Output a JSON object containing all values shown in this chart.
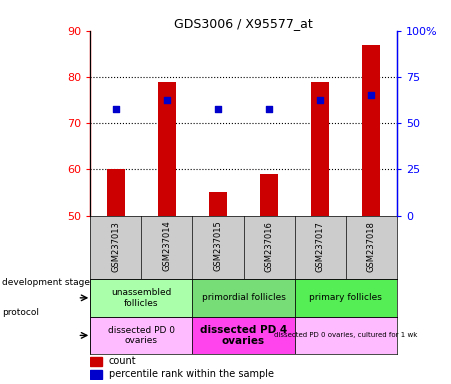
{
  "title": "GDS3006 / X95577_at",
  "samples": [
    "GSM237013",
    "GSM237014",
    "GSM237015",
    "GSM237016",
    "GSM237017",
    "GSM237018"
  ],
  "counts": [
    60,
    79,
    55,
    59,
    79,
    87
  ],
  "percentile_ranks": [
    73,
    75,
    73,
    73,
    75,
    76
  ],
  "ymin": 50,
  "ymax": 90,
  "yticks": [
    50,
    60,
    70,
    80,
    90
  ],
  "y2ticks": [
    0,
    25,
    50,
    75,
    100
  ],
  "y2labels": [
    "0",
    "25",
    "50",
    "75",
    "100%"
  ],
  "bar_color": "#cc0000",
  "dot_color": "#0000cc",
  "development_stages": [
    {
      "label": "unassembled\nfollicles",
      "start": 0,
      "end": 2,
      "color": "#aaffaa"
    },
    {
      "label": "primordial follicles",
      "start": 2,
      "end": 4,
      "color": "#77dd77"
    },
    {
      "label": "primary follicles",
      "start": 4,
      "end": 6,
      "color": "#55ee55"
    }
  ],
  "protocols": [
    {
      "label": "dissected PD 0\novaries",
      "start": 0,
      "end": 2,
      "color": "#ffbbff",
      "bold": false
    },
    {
      "label": "dissected PD 4\novaries",
      "start": 2,
      "end": 4,
      "color": "#ff44ee",
      "bold": true
    },
    {
      "label": "dissected PD 0 ovaries, cultured for 1 wk",
      "start": 4,
      "end": 6,
      "color": "#ffbbff",
      "bold": false
    }
  ],
  "legend_count_color": "#cc0000",
  "legend_rank_color": "#0000cc",
  "sample_bg_color": "#cccccc"
}
